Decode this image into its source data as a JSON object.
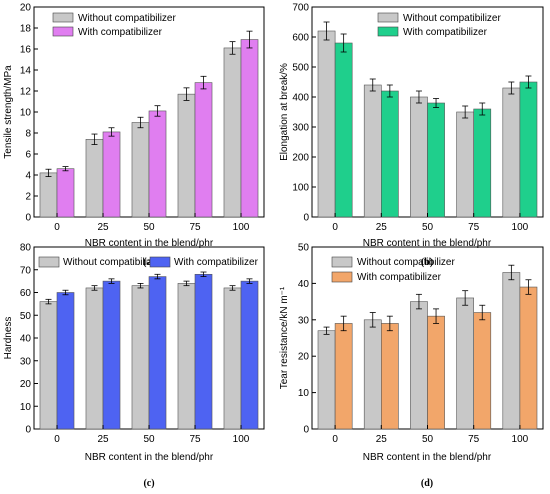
{
  "colors": {
    "without": "#c8c8c8",
    "with_a": "#e07ef0",
    "with_b": "#1fcf8c",
    "with_c": "#4e63f2",
    "with_d": "#f2a66a",
    "errorbar": "#000000"
  },
  "chart_data": [
    {
      "type": "bar",
      "panel_label": "(a)",
      "categories": [
        "0",
        "25",
        "50",
        "75",
        "100"
      ],
      "xlabel": "NBR content in the blend/phr",
      "ylabel": "Tensile strength/MPa",
      "ylim": [
        0,
        20
      ],
      "yticks": [
        "0",
        "2",
        "4",
        "6",
        "8",
        "10",
        "12",
        "14",
        "16",
        "18",
        "20"
      ],
      "legend_position": "top-left",
      "series": [
        {
          "name": "Without compatibilizer",
          "values": [
            4.2,
            7.4,
            9.0,
            11.7,
            16.1
          ],
          "errors": [
            0.35,
            0.5,
            0.5,
            0.6,
            0.6
          ]
        },
        {
          "name": "With compatibilizer",
          "values": [
            4.6,
            8.1,
            10.1,
            12.8,
            16.9
          ],
          "errors": [
            0.2,
            0.4,
            0.5,
            0.6,
            0.8
          ]
        }
      ]
    },
    {
      "type": "bar",
      "panel_label": "(b)",
      "categories": [
        "0",
        "25",
        "50",
        "75",
        "100"
      ],
      "xlabel": "NBR content in the blend/phr",
      "ylabel": "Elongation at break/%",
      "ylim": [
        0,
        700
      ],
      "yticks": [
        "0",
        "100",
        "200",
        "300",
        "400",
        "500",
        "600",
        "700"
      ],
      "legend_position": "top-right",
      "series": [
        {
          "name": "Without compatibilizer",
          "values": [
            620,
            440,
            400,
            350,
            430
          ],
          "errors": [
            30,
            20,
            20,
            20,
            20
          ]
        },
        {
          "name": "With compatibilizer",
          "values": [
            580,
            420,
            380,
            360,
            450
          ],
          "errors": [
            30,
            20,
            15,
            20,
            20
          ]
        }
      ]
    },
    {
      "type": "bar",
      "panel_label": "(c)",
      "categories": [
        "0",
        "25",
        "50",
        "75",
        "100"
      ],
      "xlabel": "NBR content in the blend/phr",
      "ylabel": "Hardness",
      "ylim": [
        0,
        80
      ],
      "yticks": [
        "0",
        "10",
        "20",
        "30",
        "40",
        "50",
        "60",
        "70",
        "80"
      ],
      "legend_position": "top",
      "series": [
        {
          "name": "Without compatibilizer",
          "values": [
            56,
            62,
            63,
            64,
            62
          ],
          "errors": [
            1,
            1,
            1,
            1,
            1
          ]
        },
        {
          "name": "With compatibilizer",
          "values": [
            60,
            65,
            67,
            68,
            65
          ],
          "errors": [
            1,
            1,
            1,
            1,
            1
          ]
        }
      ]
    },
    {
      "type": "bar",
      "panel_label": "(d)",
      "categories": [
        "0",
        "25",
        "50",
        "75",
        "100"
      ],
      "xlabel": "NBR content in the blend/phr",
      "ylabel": "Tear resistance/kN m⁻¹",
      "ylim": [
        0,
        50
      ],
      "yticks": [
        "0",
        "10",
        "20",
        "30",
        "40",
        "50"
      ],
      "legend_position": "top-left",
      "series": [
        {
          "name": "Without compatibilizer",
          "values": [
            27,
            30,
            35,
            36,
            43
          ],
          "errors": [
            1,
            2,
            2,
            2,
            2
          ]
        },
        {
          "name": "With compatibilizer",
          "values": [
            29,
            29,
            31,
            32,
            39
          ],
          "errors": [
            2,
            2,
            2,
            2,
            2
          ]
        }
      ]
    }
  ]
}
